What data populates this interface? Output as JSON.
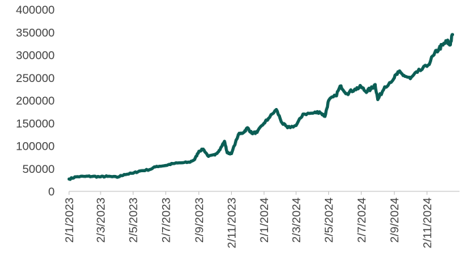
{
  "chart_data": {
    "type": "line",
    "title": "",
    "xlabel": "",
    "ylabel": "",
    "ylim": [
      0,
      400000
    ],
    "y_ticks": [
      0,
      50000,
      100000,
      150000,
      200000,
      250000,
      300000,
      350000,
      400000
    ],
    "y_tick_labels": [
      "0",
      "50000",
      "100000",
      "150000",
      "200000",
      "250000",
      "300000",
      "350000",
      "400000"
    ],
    "x_tick_labels": [
      "2/1/2023",
      "2/3/2023",
      "2/5/2023",
      "2/7/2023",
      "2/9/2023",
      "2/11/2023",
      "2/1/2024",
      "2/3/2024",
      "2/5/2024",
      "2/7/2024",
      "2/9/2024",
      "2/11/2024"
    ],
    "x_range": [
      "2/1/2023",
      "2/1/2025"
    ],
    "grid": false,
    "legend": "none",
    "line_color": "#0b5e55",
    "series": [
      {
        "x": [
          "2/1/2023",
          "15/1/2023",
          "2/2/2023",
          "15/2/2023",
          "2/3/2023",
          "15/3/2023",
          "2/4/2023",
          "15/4/2023",
          "2/5/2023",
          "15/5/2023",
          "2/6/2023",
          "15/6/2023",
          "2/7/2023",
          "15/7/2023",
          "2/8/2023",
          "15/8/2023",
          "25/8/2023",
          "2/9/2023",
          "10/9/2023",
          "20/9/2023",
          "2/10/2023",
          "10/10/2023",
          "20/10/2023",
          "25/10/2023",
          "2/11/2023",
          "15/11/2023",
          "25/11/2023",
          "2/12/2023",
          "10/12/2023",
          "20/12/2023",
          "2/1/2024",
          "10/1/2024",
          "25/1/2024",
          "5/2/2024",
          "15/2/2024",
          "2/3/2024",
          "15/3/2024",
          "2/4/2024",
          "15/4/2024",
          "25/4/2024",
          "2/5/2024",
          "15/5/2024",
          "25/5/2024",
          "5/6/2024",
          "20/6/2024",
          "2/7/2024",
          "10/7/2024",
          "20/7/2024",
          "28/7/2024",
          "2/8/2024",
          "15/8/2024",
          "2/9/2024",
          "10/9/2024",
          "20/9/2024",
          "2/10/2024",
          "15/10/2024",
          "2/11/2024",
          "15/11/2024",
          "25/11/2024",
          "2/12/2024",
          "10/12/2024",
          "15/12/2024",
          "20/12/2024"
        ],
        "y": [
          27000,
          32000,
          33000,
          33000,
          32000,
          33000,
          31000,
          37000,
          40000,
          45000,
          48000,
          55000,
          57000,
          61000,
          63000,
          64000,
          70000,
          88000,
          93000,
          77000,
          80000,
          90000,
          110000,
          85000,
          83000,
          125000,
          130000,
          140000,
          128000,
          130000,
          150000,
          160000,
          180000,
          150000,
          140000,
          145000,
          170000,
          172000,
          175000,
          165000,
          200000,
          210000,
          232000,
          215000,
          225000,
          230000,
          220000,
          225000,
          235000,
          202000,
          230000,
          250000,
          262000,
          255000,
          248000,
          262000,
          275000,
          300000,
          315000,
          322000,
          330000,
          322000,
          345000
        ]
      }
    ]
  }
}
